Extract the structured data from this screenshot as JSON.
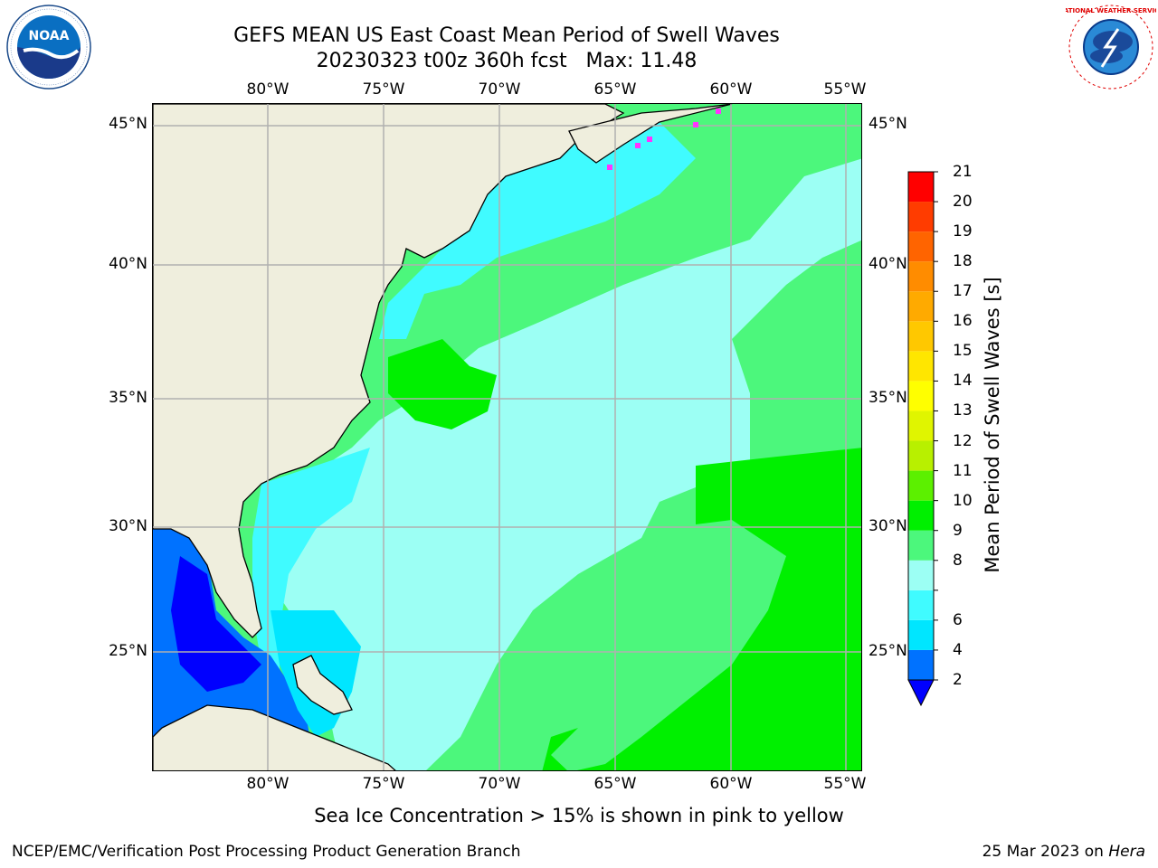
{
  "header": {
    "title_line1": "GEFS MEAN US East Coast Mean Period of Swell Waves",
    "title_line2": "20230323 t00z 360h fcst   Max: 11.48"
  },
  "axes": {
    "lon_ticks": [
      "80°W",
      "75°W",
      "70°W",
      "65°W",
      "60°W",
      "55°W"
    ],
    "lat_ticks": [
      "45°N",
      "40°N",
      "35°N",
      "30°N",
      "25°N"
    ]
  },
  "colorbar": {
    "label": "Mean Period of Swell Waves [s]",
    "levels": [
      "2",
      "4",
      "6",
      "7",
      "8",
      "9",
      "10",
      "11",
      "12",
      "13",
      "14",
      "15",
      "16",
      "17",
      "18",
      "19",
      "20",
      "21"
    ],
    "display_labels": [
      "2",
      "4",
      "6",
      "8",
      "9",
      "10",
      "11",
      "12",
      "13",
      "14",
      "15",
      "16",
      "17",
      "18",
      "19",
      "20",
      "21"
    ],
    "colors": [
      "#0072ff",
      "#00e6ff",
      "#40fbff",
      "#9cfff4",
      "#4cf77c",
      "#00f000",
      "#5cf000",
      "#b8f000",
      "#e0f500",
      "#ffff00",
      "#ffe600",
      "#ffc800",
      "#ffaa00",
      "#ff8c00",
      "#ff6400",
      "#ff3c00",
      "#ff0000"
    ],
    "under_color": "#0000ff"
  },
  "note": "Sea Ice Concentration > 15% is shown in pink to yellow",
  "footer": {
    "left": "NCEP/EMC/Verification Post Processing Product Generation Branch",
    "date": "25 Mar 2023 on ",
    "host": "Hera"
  },
  "logos": {
    "noaa_text": "NOAA",
    "nws_text": "NATIONAL WEATHER SERVICE"
  },
  "map_colors": {
    "land": "#efeedd",
    "ocean_9_10": "#4cf77c",
    "ocean_10_11": "#00f000",
    "ocean_8_9": "#9cfff4",
    "ocean_7_8": "#40fbff",
    "ocean_6_7": "#00e6ff",
    "ocean_2_4": "#0072ff",
    "ocean_below_2": "#0000ff",
    "grid": "#b0b0b0",
    "sea_ice": "#ff33ff"
  }
}
